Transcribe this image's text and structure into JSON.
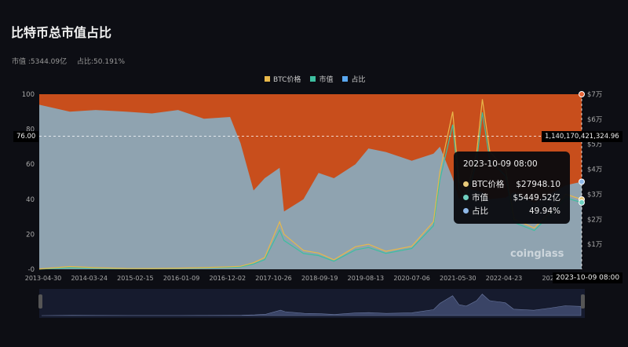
{
  "title": "比特币总市值占比",
  "summary": {
    "market_cap": "市值 :5344.09亿",
    "dominance": "占比:50.191%"
  },
  "legend": [
    {
      "label": "BTC价格",
      "color": "#e8b84a"
    },
    {
      "label": "市值",
      "color": "#3dbfa0"
    },
    {
      "label": "占比",
      "color": "#5aa8f0"
    }
  ],
  "tooltip": {
    "date": "2023-10-09 08:00",
    "rows": [
      {
        "label": "BTC价格",
        "value": "$27948.10",
        "color": "#e8c97a"
      },
      {
        "label": "市值",
        "value": "$5449.52亿",
        "color": "#6fd0c0"
      },
      {
        "label": "占比",
        "value": "49.94%",
        "color": "#8fb8e8"
      }
    ]
  },
  "crosshair": {
    "left_value": "76.00",
    "right_value": "1,140,170,421,324.96",
    "x_label": "2023-10-09 08:00"
  },
  "watermark": "coinglass",
  "colors": {
    "background": "#0d0e14",
    "dominance_fill": "#8fa3b0",
    "remainder_fill": "#c84e1c",
    "price": "#e8b84a",
    "mcap": "#3dbfa0"
  },
  "chart_data": {
    "type": "area",
    "title": "比特币总市值占比",
    "x_ticks": [
      "2013-04-30",
      "2014-03-24",
      "2015-02-15",
      "2016-01-09",
      "2016-12-02",
      "2017-10-26",
      "2018-09-19",
      "2019-08-13",
      "2020-07-06",
      "2021-05-30",
      "2022-04-23",
      "2023"
    ],
    "y_left": {
      "ticks": [
        "100",
        "80",
        "60",
        "40",
        "20",
        "-0"
      ],
      "range": [
        0,
        100
      ]
    },
    "y_right": {
      "ticks": [
        "$7万",
        "$6万",
        "$5万",
        "$4万",
        "$3万",
        "$2万",
        "$1万"
      ],
      "range": [
        0,
        70000
      ]
    },
    "grid": false,
    "legend_placement": "top-center",
    "x": [
      "2013-04-30",
      "2013-12-01",
      "2014-06-01",
      "2015-01-01",
      "2015-07-01",
      "2016-01-01",
      "2016-07-01",
      "2017-01-01",
      "2017-03-15",
      "2017-06-15",
      "2017-09-01",
      "2017-12-15",
      "2018-01-15",
      "2018-06-01",
      "2018-09-15",
      "2019-01-01",
      "2019-06-01",
      "2019-09-01",
      "2020-01-01",
      "2020-07-01",
      "2020-12-01",
      "2021-01-15",
      "2021-04-15",
      "2021-05-30",
      "2021-07-20",
      "2021-10-01",
      "2021-11-10",
      "2022-01-01",
      "2022-04-23",
      "2022-06-20",
      "2022-11-10",
      "2023-03-01",
      "2023-06-20",
      "2023-10-09"
    ],
    "series": [
      {
        "name": "占比",
        "values": [
          94,
          90,
          91,
          90,
          89,
          91,
          86,
          87,
          72,
          45,
          52,
          58,
          33,
          40,
          55,
          52,
          60,
          69,
          67,
          62,
          66,
          70,
          52,
          40,
          46,
          45,
          44,
          40,
          41,
          44,
          38,
          43,
          48,
          50
        ]
      },
      {
        "name": "BTC价格",
        "values": [
          140,
          1100,
          640,
          320,
          270,
          430,
          670,
          1000,
          1200,
          2600,
          4700,
          19000,
          14000,
          7500,
          6500,
          3800,
          9000,
          10000,
          7200,
          9200,
          19000,
          39000,
          63000,
          35000,
          30000,
          47000,
          68000,
          47000,
          40000,
          20000,
          16500,
          23000,
          30000,
          27948
        ]
      },
      {
        "name": "市值",
        "values": [
          15,
          120,
          80,
          45,
          40,
          65,
          105,
          160,
          195,
          430,
          790,
          3200,
          2350,
          1290,
          1120,
          660,
          1580,
          1780,
          1300,
          1690,
          3550,
          7300,
          11800,
          6550,
          5640,
          8850,
          12800,
          8900,
          7600,
          3820,
          3170,
          4430,
          5820,
          5449.52
        ]
      }
    ]
  }
}
